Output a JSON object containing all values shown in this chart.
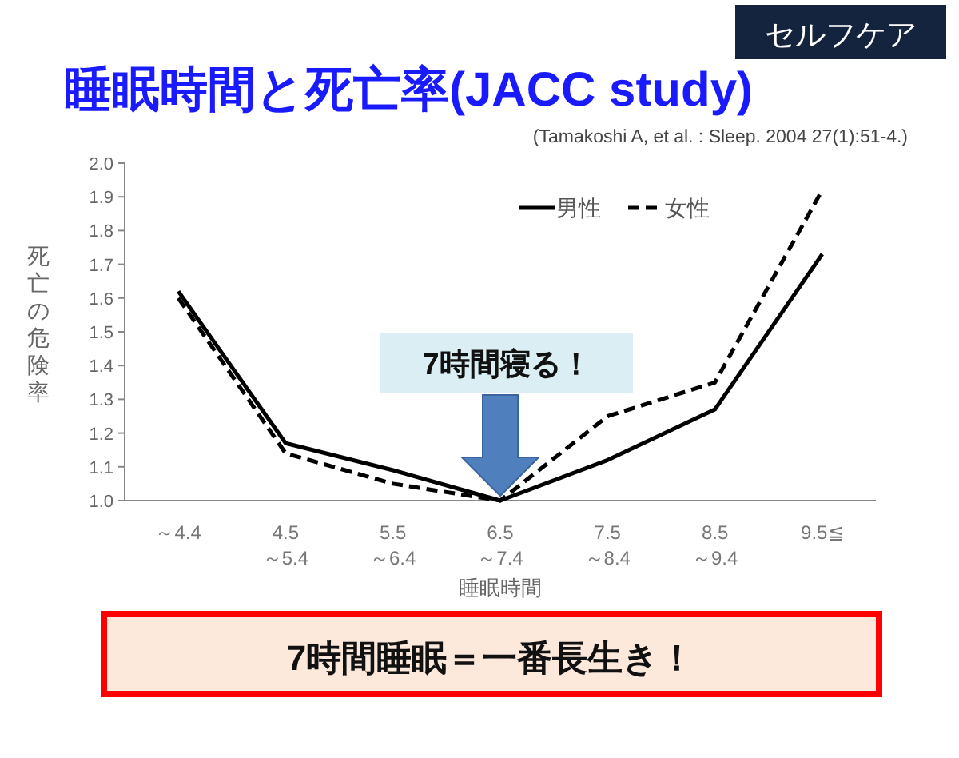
{
  "chart_data": {
    "type": "line",
    "title": "睡眠時間と死亡率(JACC study)",
    "subtitle": "(Tamakoshi A, et al. : Sleep. 2004 27(1):51-4.)",
    "xlabel": "睡眠時間",
    "ylabel": "死亡の危険率",
    "categories": [
      "～4.4",
      "4.5\n～5.4",
      "5.5\n～6.4",
      "6.5\n～7.4",
      "7.5\n～8.4",
      "8.5\n～9.4",
      "9.5≦"
    ],
    "series": [
      {
        "name": "男性",
        "color": "#000000",
        "line_style": "solid",
        "values": [
          1.62,
          1.17,
          1.09,
          1.0,
          1.12,
          1.27,
          1.73
        ]
      },
      {
        "name": "女性",
        "color": "#000000",
        "line_style": "dashed",
        "values": [
          1.6,
          1.14,
          1.05,
          1.0,
          1.25,
          1.35,
          1.92
        ]
      }
    ],
    "ylim": [
      1.0,
      2.0
    ],
    "yticks": [
      {
        "value": 1.0,
        "label": "1.0"
      },
      1.1,
      1.2,
      1.3,
      1.4,
      1.5,
      1.6,
      1.7,
      1.8,
      1.9,
      {
        "value": 2.0,
        "label": "2.0"
      }
    ],
    "grid": false,
    "legend": "top",
    "marker": "none",
    "annotations": [
      "セルフケア",
      "7時間寝る！",
      "7時間睡眠＝一番長生き！"
    ]
  }
}
